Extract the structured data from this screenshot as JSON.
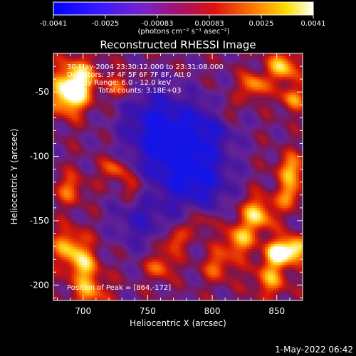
{
  "chart_data": {
    "type": "heatmap",
    "title": "Reconstructed RHESSI Image",
    "xlabel": "Heliocentric X (arcsec)",
    "ylabel": "Heliocentric Y (arcsec)",
    "xlim": [
      677,
      870
    ],
    "ylim": [
      -212,
      -20
    ],
    "x_ticks": [
      700,
      750,
      800,
      850
    ],
    "y_ticks": [
      -50,
      -100,
      -150,
      -200
    ],
    "colorbar": {
      "min": -0.0041,
      "max": 0.0041,
      "ticks": [
        "-0.0041",
        "-0.0025",
        "-0.00083",
        "0.00083",
        "0.0025",
        "0.0041"
      ],
      "unit_label": "(photons cm⁻² s⁻¹ asec⁻²)"
    },
    "annotations": [
      "30-May-2004 23:30:12.000 to 23:31:08.000",
      "Detectors: 3F 4F 5F 6F 7F 8F, Att 0",
      "Energy Range: 6.0 - 12.0 keV",
      "Clean     Total counts: 3.18E+03"
    ],
    "peak_label": "Position of Peak = [864,-172]",
    "peak": [
      864,
      -172
    ],
    "colormap": "blue-purple-red-orange-yellow-white",
    "grid": false
  },
  "timestamp": "1-May-2022 06:42"
}
